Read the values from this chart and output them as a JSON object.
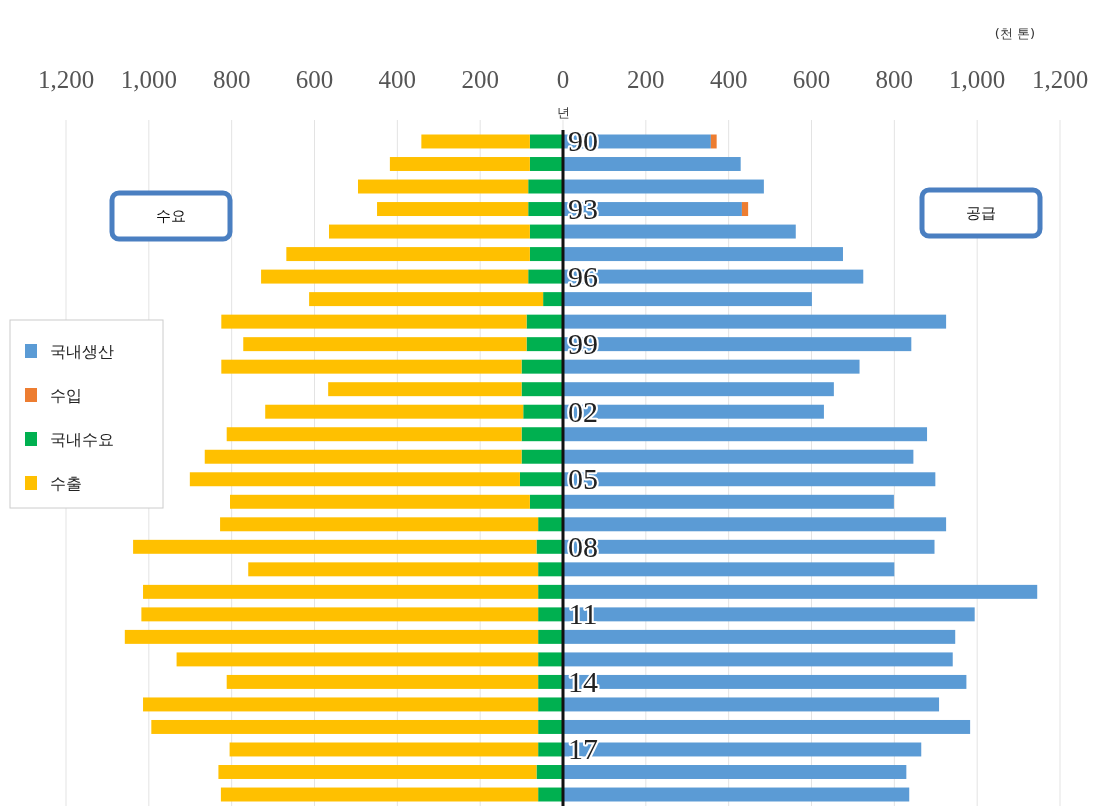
{
  "chart_data": {
    "type": "bar",
    "orientation": "horizontal",
    "stacked": true,
    "xlabel": "(천 톤)",
    "ylabel": "년",
    "categories": [
      "90",
      null,
      null,
      "93",
      null,
      null,
      "96",
      null,
      null,
      "99",
      null,
      null,
      "02",
      null,
      null,
      "05",
      null,
      null,
      "08",
      null,
      null,
      "11",
      null,
      null,
      "14",
      null,
      null,
      "17",
      null,
      null
    ],
    "series": [
      {
        "name": "국내생산",
        "color": "#5b9bd5",
        "values": [
          357,
          429,
          485,
          432,
          562,
          676,
          725,
          601,
          925,
          841,
          716,
          654,
          630,
          879,
          846,
          899,
          799,
          925,
          897,
          800,
          1145,
          994,
          947,
          941,
          974,
          908,
          983,
          865,
          829,
          836
        ]
      },
      {
        "name": "수입",
        "color": "#ed7d31",
        "values": [
          14,
          0,
          0,
          15,
          0,
          0,
          0,
          0,
          0,
          0,
          0,
          0,
          0,
          0,
          0,
          0,
          0,
          0,
          0,
          0,
          0,
          0,
          0,
          0,
          0,
          0,
          0,
          0,
          0,
          0
        ]
      },
      {
        "name": "국내수요",
        "color": "#00b050",
        "values": [
          -80,
          -80,
          -84,
          -84,
          -80,
          -80,
          -84,
          -48,
          -88,
          -88,
          -100,
          -100,
          -96,
          -100,
          -100,
          -104,
          -80,
          -60,
          -64,
          -60,
          -60,
          -60,
          -60,
          -60,
          -60,
          -60,
          -60,
          -60,
          -64,
          -60
        ]
      },
      {
        "name": "수출",
        "color": "#ffc000",
        "values": [
          -262,
          -338,
          -411,
          -365,
          -485,
          -588,
          -645,
          -565,
          -737,
          -684,
          -725,
          -467,
          -623,
          -712,
          -765,
          -797,
          -724,
          -768,
          -974,
          -700,
          -954,
          -958,
          -998,
          -873,
          -752,
          -954,
          -934,
          -745,
          -768,
          -766
        ]
      }
    ],
    "xlim": [
      -1200,
      1200
    ],
    "xticks": [
      {
        "value": -1200,
        "label": "1,200"
      },
      {
        "value": -1000,
        "label": "1,000"
      },
      {
        "value": -800,
        "label": "800"
      },
      {
        "value": -600,
        "label": "600"
      },
      {
        "value": -400,
        "label": "400"
      },
      {
        "value": -200,
        "label": "200"
      },
      0,
      200,
      400,
      600,
      800,
      {
        "value": 1000,
        "label": "1,000"
      },
      {
        "value": 1200,
        "label": "1,200"
      }
    ],
    "grid": "x",
    "legend": "left",
    "annotations": [
      "수요",
      "공급"
    ]
  }
}
